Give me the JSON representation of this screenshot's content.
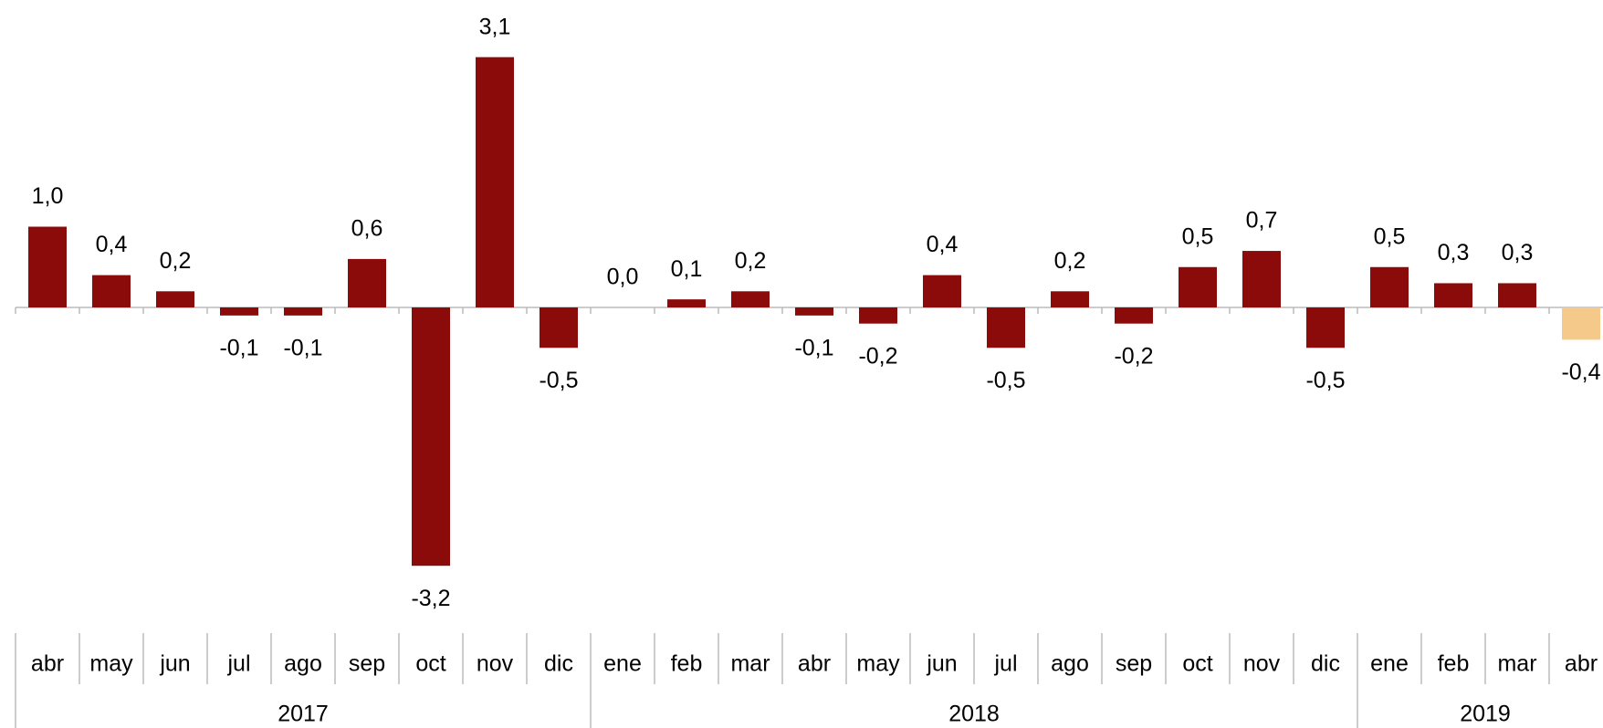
{
  "chart_data": {
    "type": "bar",
    "categories": [
      "abr",
      "may",
      "jun",
      "jul",
      "ago",
      "sep",
      "oct",
      "nov",
      "dic",
      "ene",
      "feb",
      "mar",
      "abr",
      "may",
      "jun",
      "jul",
      "ago",
      "sep",
      "oct",
      "nov",
      "dic",
      "ene",
      "feb",
      "mar",
      "abr"
    ],
    "years": [
      "2017",
      null,
      null,
      null,
      null,
      null,
      null,
      null,
      null,
      "2018",
      null,
      null,
      null,
      null,
      null,
      null,
      null,
      null,
      null,
      null,
      null,
      "2019",
      null,
      null,
      null
    ],
    "values": [
      1.0,
      0.4,
      0.2,
      -0.1,
      -0.1,
      0.6,
      -3.2,
      3.1,
      -0.5,
      0.0,
      0.1,
      0.2,
      -0.1,
      -0.2,
      0.4,
      -0.5,
      0.2,
      -0.2,
      0.5,
      0.7,
      -0.5,
      0.5,
      0.3,
      0.3,
      -0.4
    ],
    "value_labels": [
      "1,0",
      "0,4",
      "0,2",
      "-0,1",
      "-0,1",
      "0,6",
      "-3,2",
      "3,1",
      "-0,5",
      "0,0",
      "0,1",
      "0,2",
      "-0,1",
      "-0,2",
      "0,4",
      "-0,5",
      "0,2",
      "-0,2",
      "0,5",
      "0,7",
      "-0,5",
      "0,5",
      "0,3",
      "0,3",
      "-0,4"
    ],
    "colors": [
      "#8b0a0a",
      "#8b0a0a",
      "#8b0a0a",
      "#8b0a0a",
      "#8b0a0a",
      "#8b0a0a",
      "#8b0a0a",
      "#8b0a0a",
      "#8b0a0a",
      "#8b0a0a",
      "#8b0a0a",
      "#8b0a0a",
      "#8b0a0a",
      "#8b0a0a",
      "#8b0a0a",
      "#8b0a0a",
      "#8b0a0a",
      "#8b0a0a",
      "#8b0a0a",
      "#8b0a0a",
      "#8b0a0a",
      "#8b0a0a",
      "#8b0a0a",
      "#8b0a0a",
      "#f5c98a"
    ]
  }
}
